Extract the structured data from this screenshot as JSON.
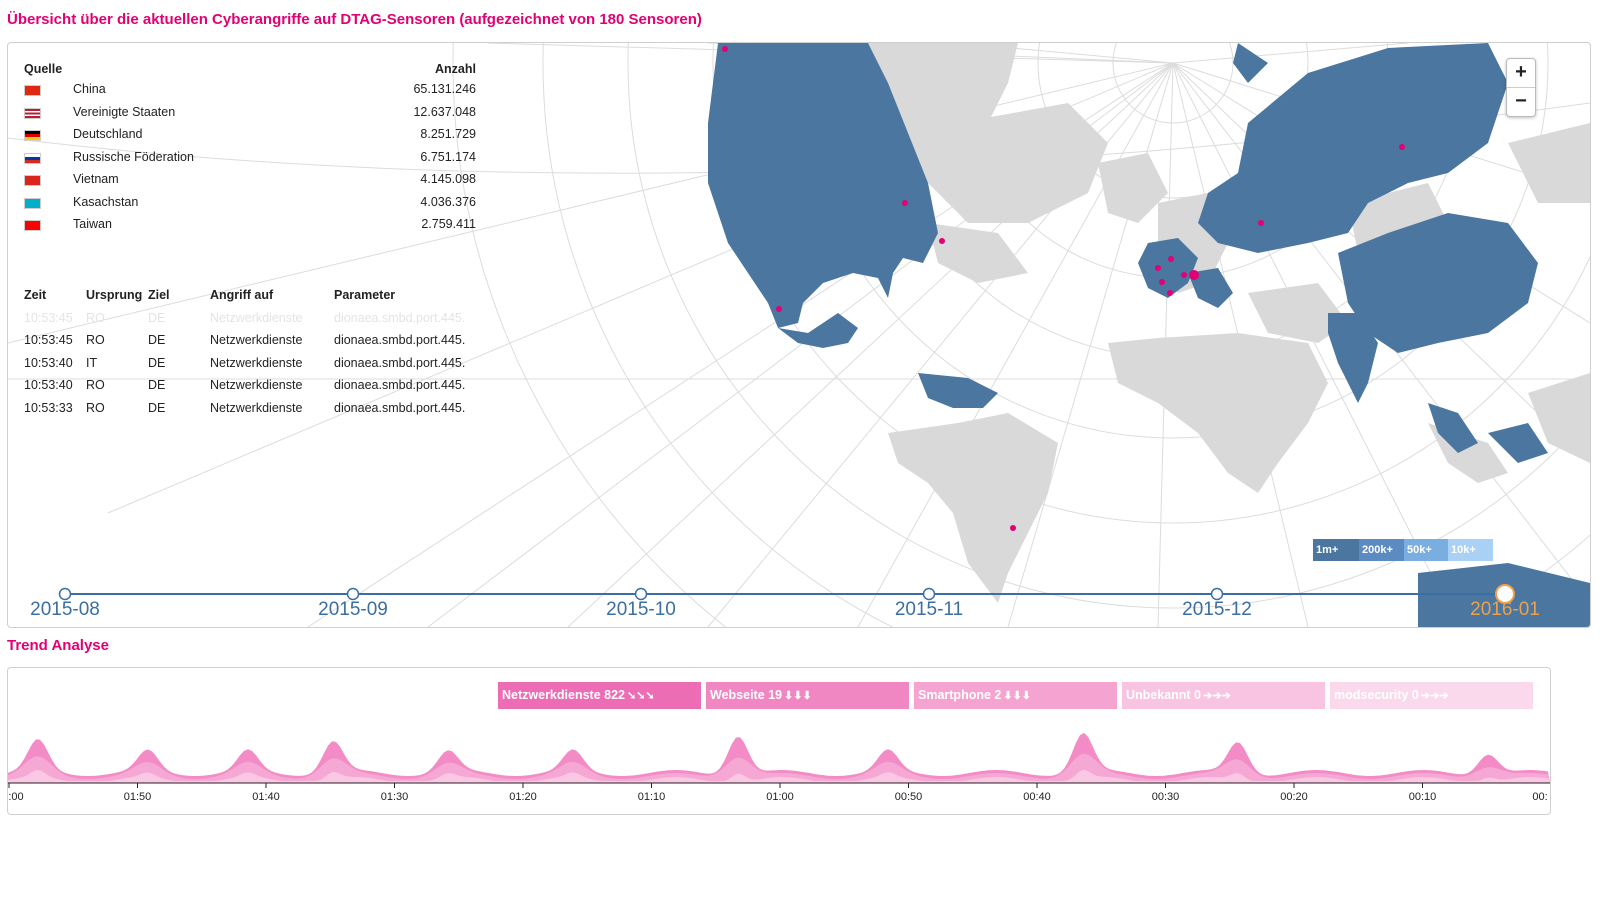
{
  "page_title": "Übersicht über die aktuellen Cyberangriffe auf DTAG-Sensoren (aufgezeichnet von 180 Sensoren)",
  "source_table": {
    "header_source": "Quelle",
    "header_count": "Anzahl",
    "rows": [
      {
        "flag": "flag-china-icon",
        "country": "China",
        "count": "65.131.246"
      },
      {
        "flag": "flag-usa-icon",
        "country": "Vereinigte Staaten",
        "count": "12.637.048"
      },
      {
        "flag": "flag-germany-icon",
        "country": "Deutschland",
        "count": "8.251.729"
      },
      {
        "flag": "flag-russia-icon",
        "country": "Russische Föderation",
        "count": "6.751.174"
      },
      {
        "flag": "flag-vietnam-icon",
        "country": "Vietnam",
        "count": "4.145.098"
      },
      {
        "flag": "flag-kazakhstan-icon",
        "country": "Kasachstan",
        "count": "4.036.376"
      },
      {
        "flag": "flag-taiwan-icon",
        "country": "Taiwan",
        "count": "2.759.411"
      }
    ]
  },
  "attack_table": {
    "headers": [
      "Zeit",
      "Ursprung",
      "Ziel",
      "Angriff auf",
      "Parameter"
    ],
    "rows": [
      {
        "time": "10:53:45",
        "origin": "RO",
        "target": "DE",
        "attack": "Netzwerkdienste",
        "param": "dionaea.smbd.port.445.",
        "faded": true
      },
      {
        "time": "10:53:45",
        "origin": "RO",
        "target": "DE",
        "attack": "Netzwerkdienste",
        "param": "dionaea.smbd.port.445."
      },
      {
        "time": "10:53:40",
        "origin": "IT",
        "target": "DE",
        "attack": "Netzwerkdienste",
        "param": "dionaea.smbd.port.445."
      },
      {
        "time": "10:53:40",
        "origin": "RO",
        "target": "DE",
        "attack": "Netzwerkdienste",
        "param": "dionaea.smbd.port.445."
      },
      {
        "time": "10:53:33",
        "origin": "RO",
        "target": "DE",
        "attack": "Netzwerkdienste",
        "param": "dionaea.smbd.port.445."
      }
    ]
  },
  "map": {
    "zoom_in": "+",
    "zoom_out": "−",
    "legend": [
      "1m+",
      "200k+",
      "50k+",
      "10k+"
    ],
    "colors": {
      "high": "#4a76a0",
      "mid": "#5b8bc0",
      "low": "#7aaee0",
      "lowest": "#a9d0f5",
      "land": "#d9d9d9",
      "marker": "#e20074"
    }
  },
  "timeline": {
    "labels": [
      "2015-08",
      "2015-09",
      "2015-10",
      "2015-11",
      "2015-12",
      "2016-01"
    ],
    "active_index": 5
  },
  "trend": {
    "title": "Trend Analyse",
    "categories": [
      {
        "label": "Netzwerkdienste 822",
        "arrows": "➘➘➘",
        "color": "#ec6db4"
      },
      {
        "label": "Webseite 19",
        "arrows": "⬇⬇⬇",
        "color": "#f086c2"
      },
      {
        "label": "Smartphone 2",
        "arrows": "⬇⬇⬇",
        "color": "#f5a3d0"
      },
      {
        "label": "Unbekannt 0",
        "arrows": "➔➔➔",
        "color": "#f9c3e2"
      },
      {
        "label": "modsecurity 0",
        "arrows": "➔➔➔",
        "color": "#fbd9ec"
      }
    ],
    "ticks": [
      ":00",
      "01:50",
      "01:40",
      "01:30",
      "01:20",
      "01:10",
      "01:00",
      "00:50",
      "00:40",
      "00:30",
      "00:20",
      "00:10",
      "00:"
    ]
  }
}
